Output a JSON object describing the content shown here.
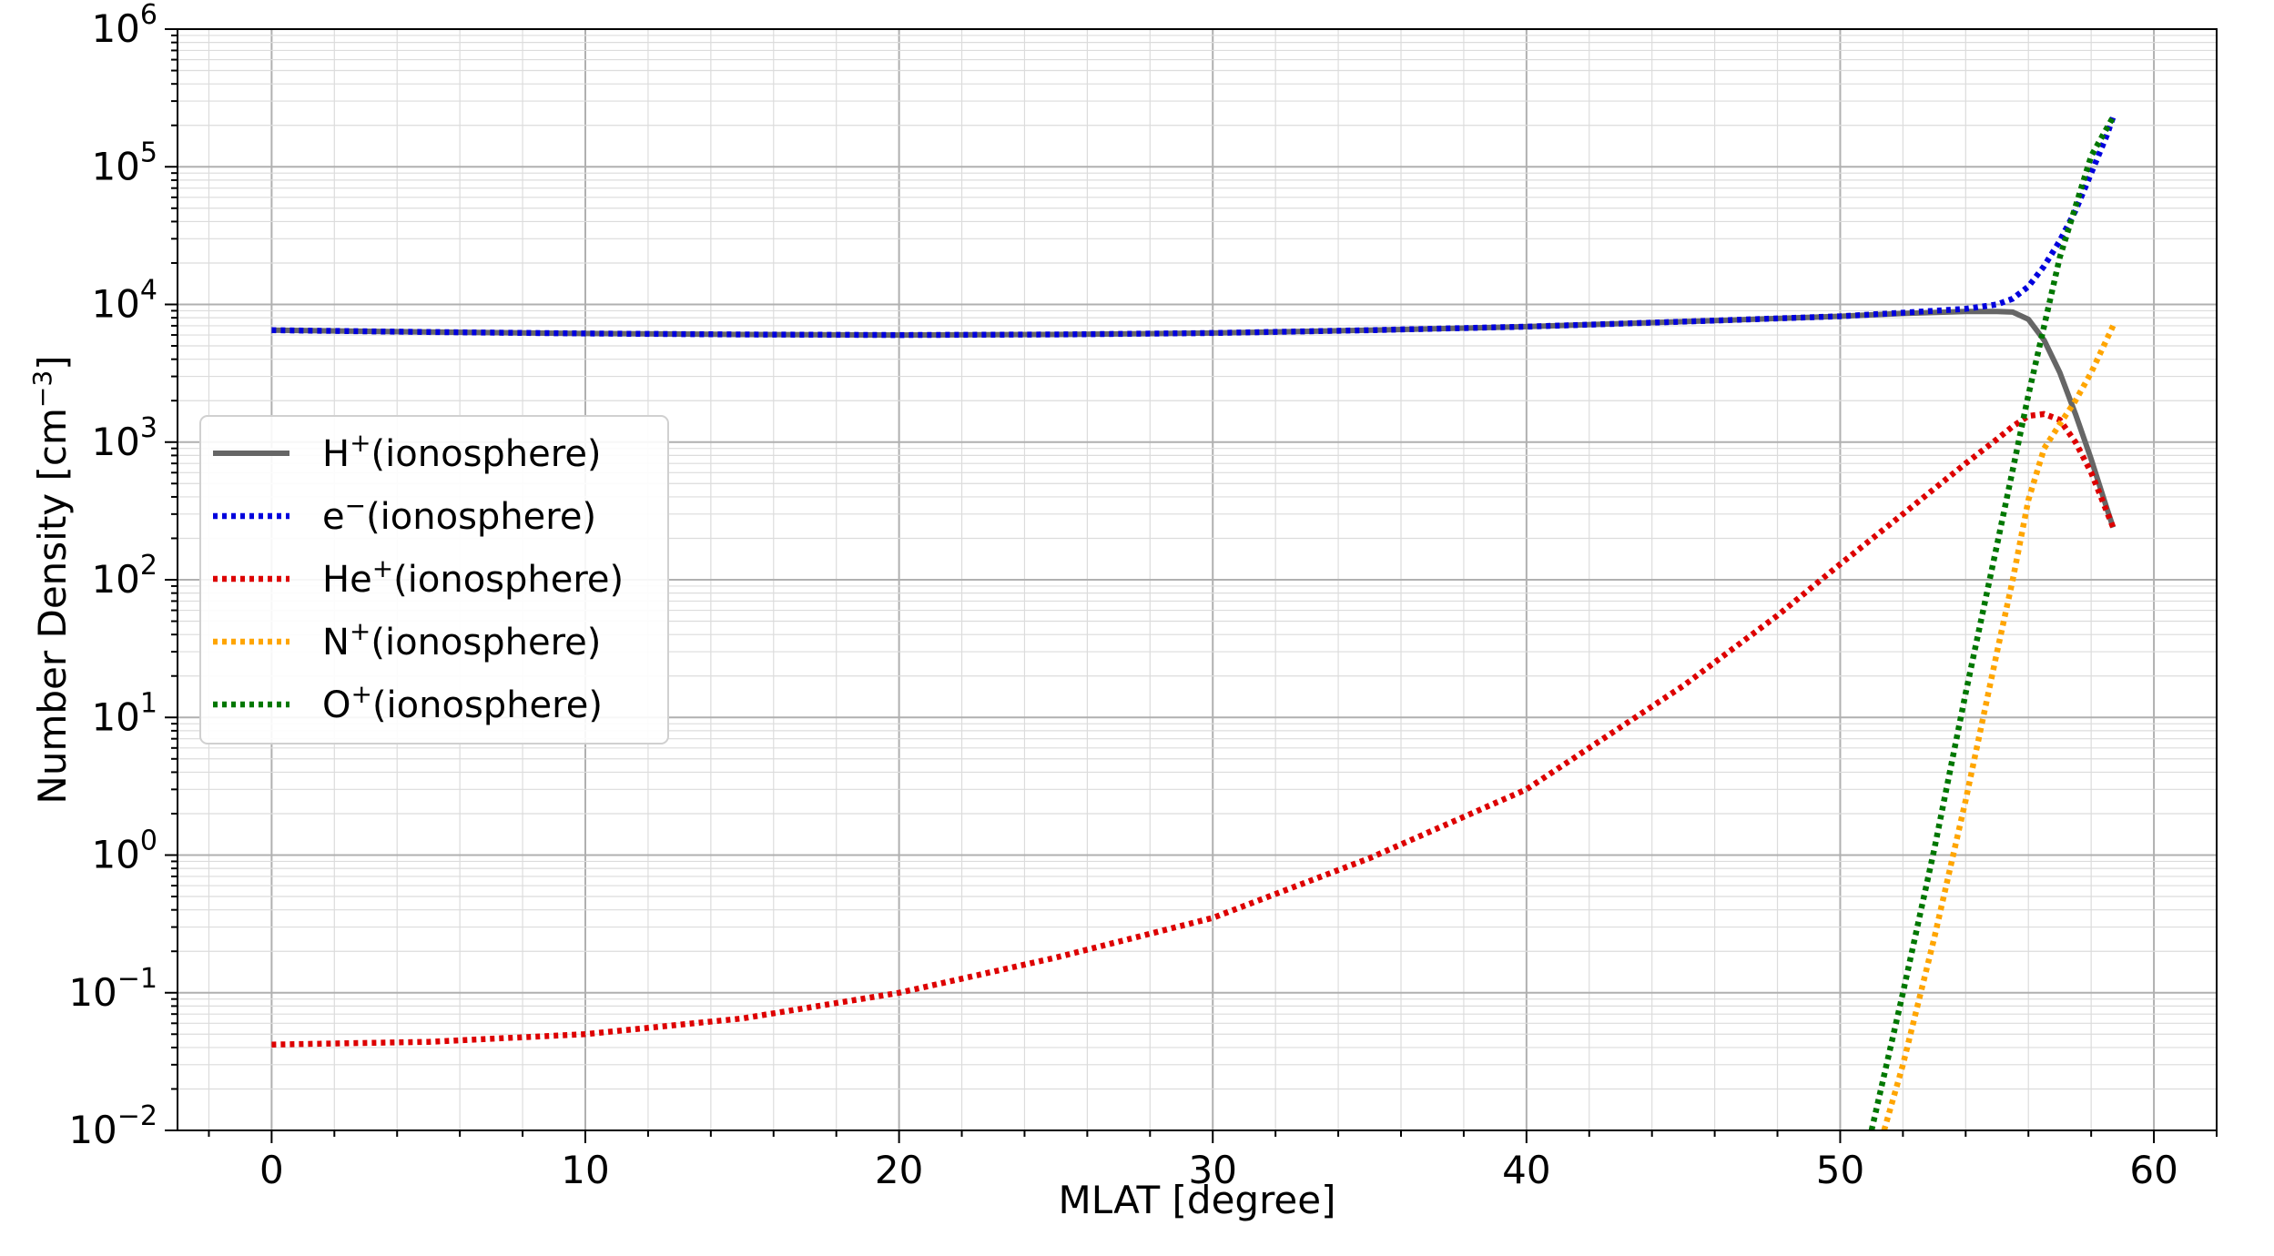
{
  "chart_data": {
    "type": "line",
    "xlabel": "MLAT [degree]",
    "ylabel": "Number Density [cm",
    "ylabel_sup": "−3",
    "ylabel_tail": "]",
    "xlim": [
      -3,
      62
    ],
    "ylim": [
      0.01,
      1000000
    ],
    "yscale": "log",
    "grid": true,
    "legend_position": "center-left",
    "x_ticks": [
      0,
      10,
      20,
      30,
      40,
      50,
      60
    ],
    "x_tick_labels": [
      "0",
      "10",
      "20",
      "30",
      "40",
      "50",
      "60"
    ],
    "y_ticks": [
      0.01,
      0.1,
      1,
      10,
      100,
      1000,
      10000,
      100000,
      1000000
    ],
    "y_tick_base": [
      "10",
      "10",
      "10",
      "10",
      "10",
      "10",
      "10",
      "10",
      "10"
    ],
    "y_tick_exp": [
      "−2",
      "−1",
      "0",
      "1",
      "2",
      "3",
      "4",
      "5",
      "6"
    ],
    "series": [
      {
        "name": "H",
        "name_sup": "+",
        "name_tail": "(ionosphere)",
        "color": "#666666",
        "style": "solid",
        "x": [
          0,
          5,
          10,
          15,
          20,
          25,
          30,
          35,
          40,
          45,
          50,
          52,
          54,
          55,
          55.5,
          56,
          56.5,
          57,
          57.5,
          58,
          58.5,
          58.7
        ],
        "y": [
          6500,
          6300,
          6150,
          6050,
          6000,
          6050,
          6200,
          6500,
          6900,
          7500,
          8200,
          8600,
          8900,
          8900,
          8800,
          7800,
          5500,
          3200,
          1600,
          750,
          330,
          240
        ]
      },
      {
        "name": "e",
        "name_sup": "−",
        "name_tail": "(ionosphere)",
        "color": "#0000dd",
        "style": "dotted",
        "x": [
          0,
          5,
          10,
          15,
          20,
          25,
          30,
          35,
          40,
          45,
          50,
          52,
          54,
          55,
          55.5,
          56,
          56.5,
          57,
          57.5,
          58,
          58.5,
          58.7
        ],
        "y": [
          6500,
          6300,
          6150,
          6050,
          6000,
          6050,
          6200,
          6500,
          6900,
          7500,
          8200,
          8700,
          9300,
          10000,
          11000,
          13500,
          19000,
          29000,
          48000,
          90000,
          170000,
          230000
        ]
      },
      {
        "name": "He",
        "name_sup": "+",
        "name_tail": "(ionosphere)",
        "color": "#dd0000",
        "style": "dotted",
        "x": [
          0,
          5,
          10,
          15,
          20,
          25,
          30,
          35,
          40,
          45,
          48,
          50,
          52,
          54,
          55,
          55.5,
          56,
          56.5,
          57,
          57.5,
          58,
          58.7
        ],
        "y": [
          0.042,
          0.044,
          0.05,
          0.065,
          0.1,
          0.18,
          0.35,
          0.95,
          3,
          17,
          55,
          130,
          300,
          700,
          1050,
          1300,
          1550,
          1600,
          1450,
          1000,
          600,
          240
        ]
      },
      {
        "name": "N",
        "name_sup": "+",
        "name_tail": "(ionosphere)",
        "color": "#ffa500",
        "style": "dotted",
        "x": [
          51.4,
          52,
          53,
          54,
          55,
          55.5,
          56,
          56.5,
          57,
          57.5,
          58,
          58.7
        ],
        "y": [
          0.01,
          0.03,
          0.25,
          2.5,
          30,
          100,
          380,
          900,
          1350,
          2000,
          3200,
          7000
        ]
      },
      {
        "name": "O",
        "name_sup": "+",
        "name_tail": "(ionosphere)",
        "color": "#007700",
        "style": "dotted",
        "x": [
          51,
          52,
          53,
          54,
          55,
          56,
          57,
          58,
          58.7
        ],
        "y": [
          0.01,
          0.1,
          1.1,
          15,
          180,
          2200,
          22000,
          120000,
          230000
        ]
      }
    ]
  }
}
